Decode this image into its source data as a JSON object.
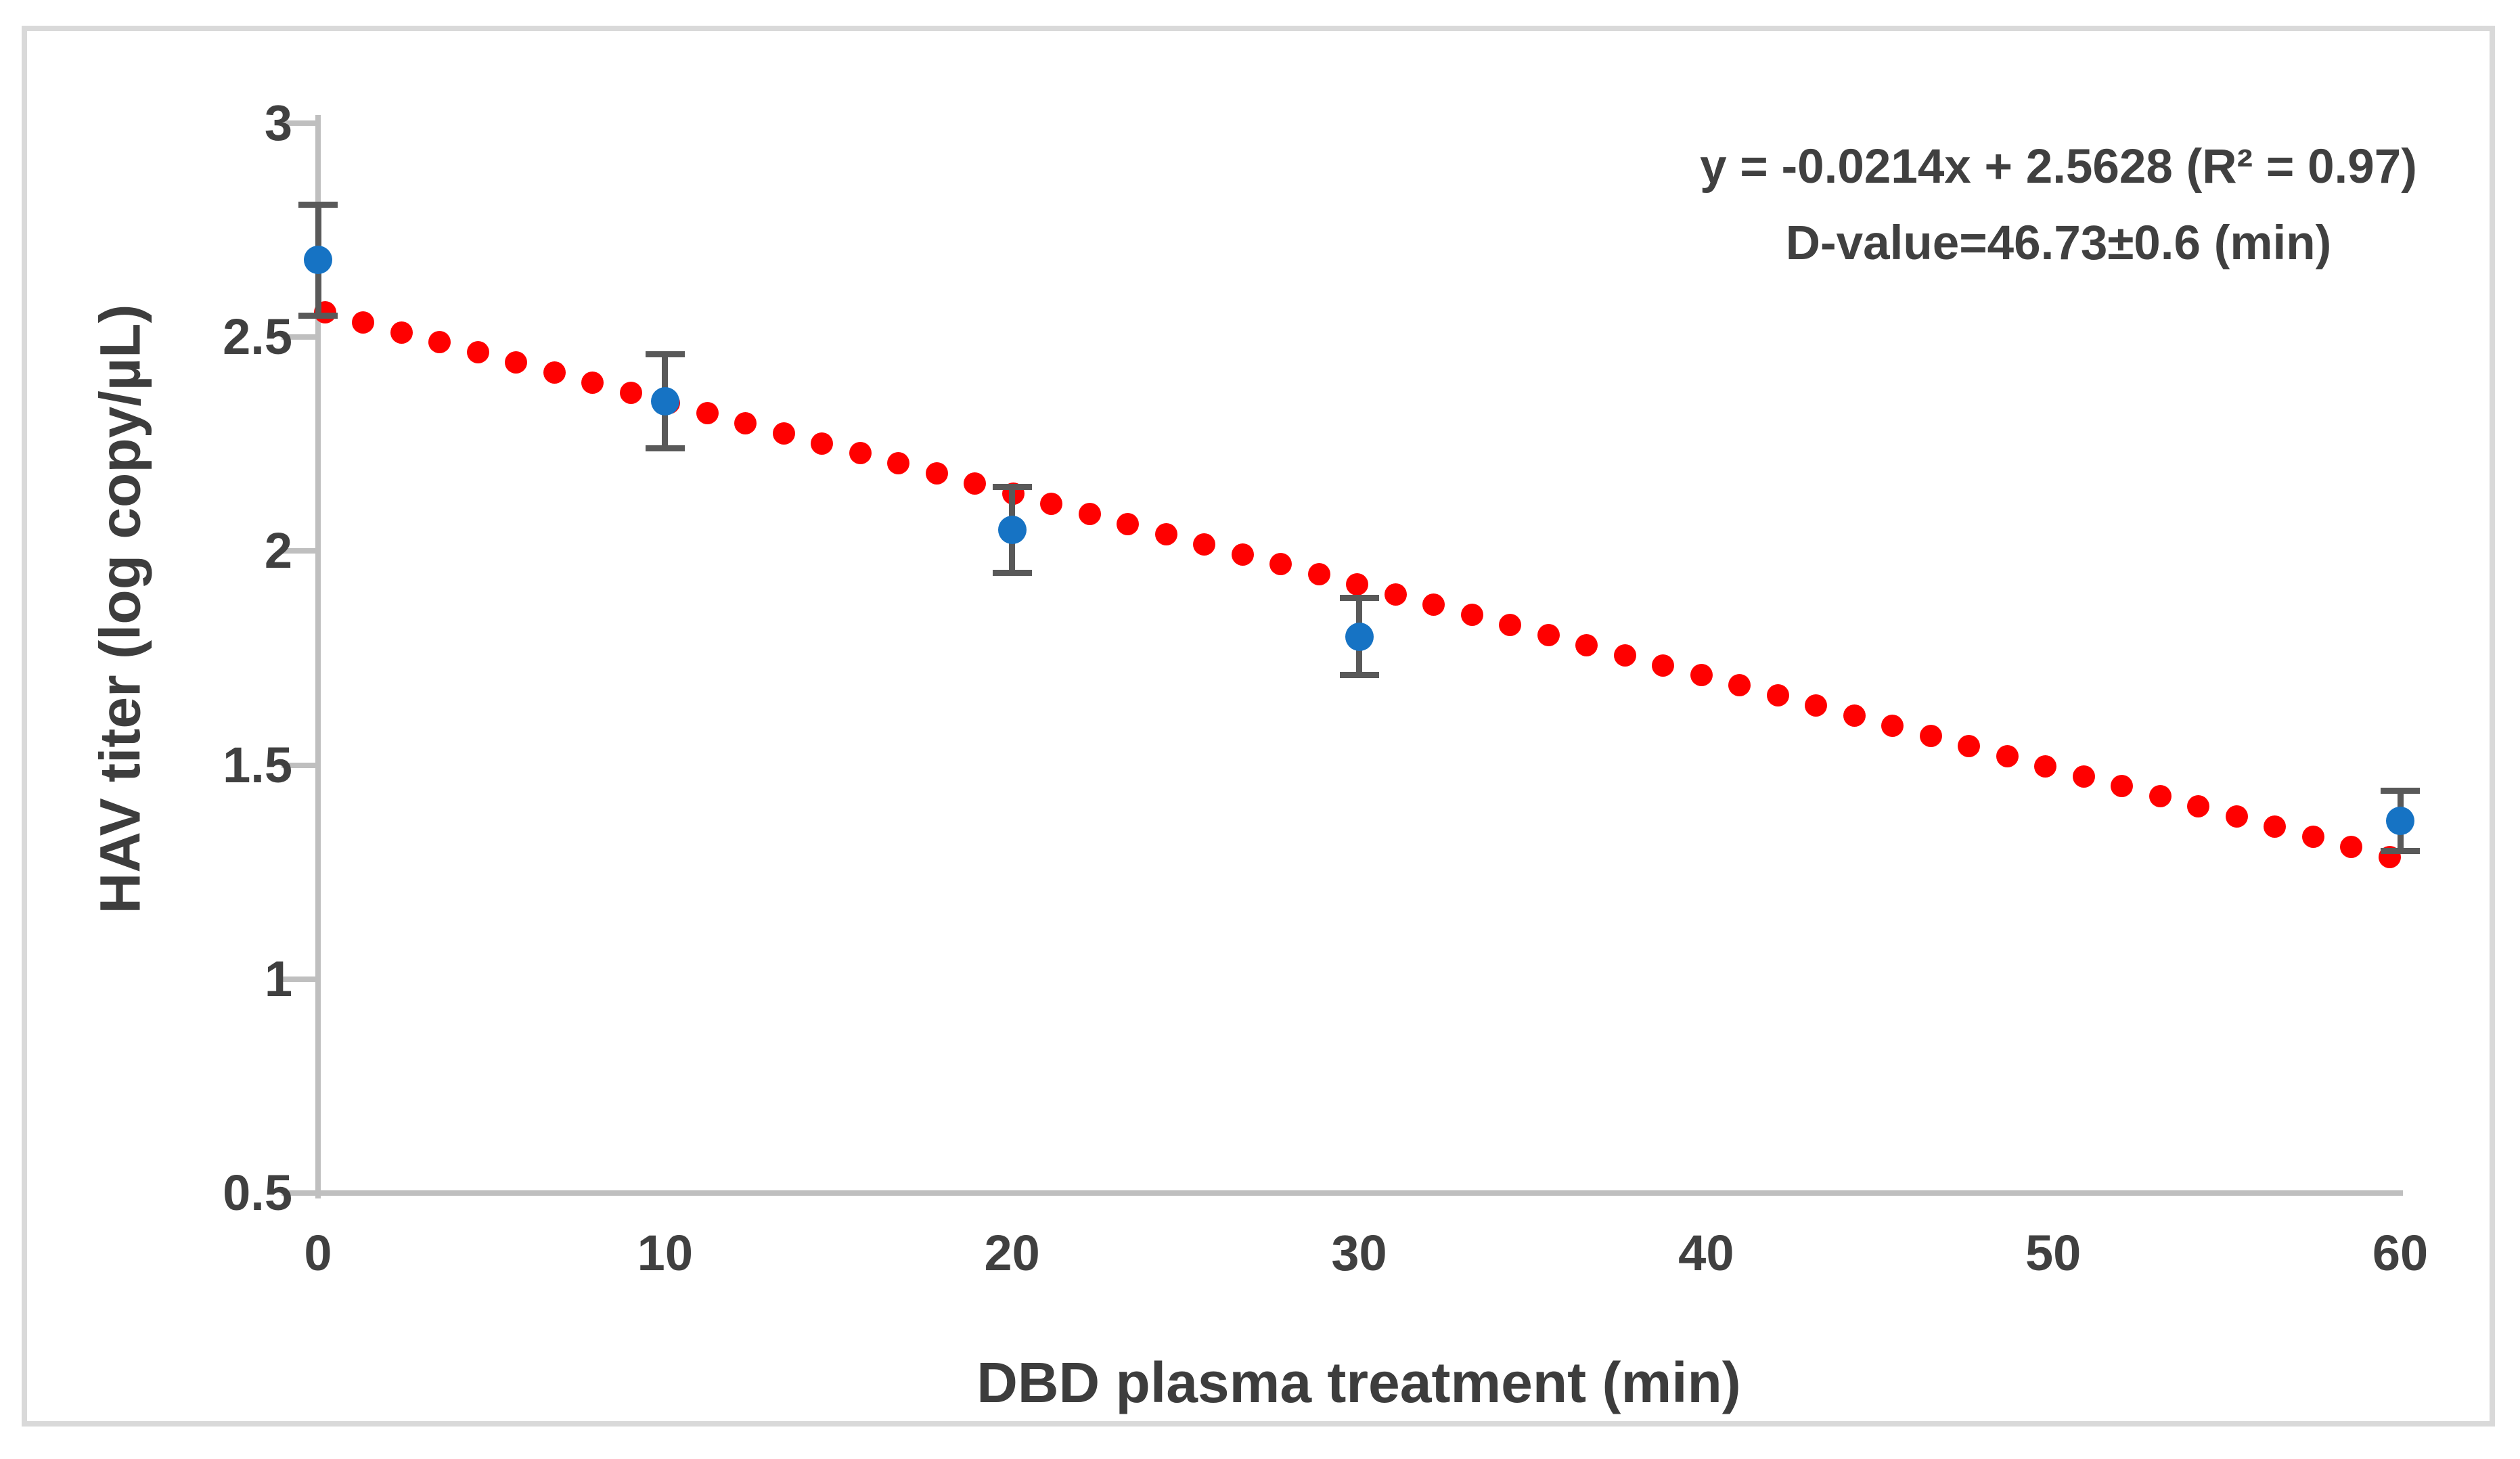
{
  "figure": {
    "background": "#FFFFFF",
    "border_color": "#D9D9D9"
  },
  "colors": {
    "axis": "#BFBFBF",
    "text": "#404040",
    "error_bar": "#595959",
    "point": "#1673C4",
    "trend": "#FF0000"
  },
  "chart_data": {
    "type": "scatter",
    "title": "",
    "xlabel": "DBD plasma treatment (min)",
    "ylabel": "HAV titer (log copy/µL)",
    "xlim": [
      0,
      60
    ],
    "ylim": [
      0.5,
      3
    ],
    "grid": false,
    "legend_position": "none",
    "x_tick_values": [
      0,
      10,
      20,
      30,
      40,
      50,
      60
    ],
    "x_tick_labels": [
      "0",
      "10",
      "20",
      "30",
      "40",
      "50",
      "60"
    ],
    "y_tick_values": [
      3,
      2.5,
      2,
      1.5,
      1,
      0.5
    ],
    "y_tick_labels": [
      "3",
      "2.5",
      "2",
      "1.5",
      "1",
      "0.5"
    ],
    "series": [
      {
        "name": "HAV titer",
        "marker": "circle",
        "color": "#1673C4",
        "x": [
          0,
          10,
          20,
          30,
          60
        ],
        "y": [
          2.68,
          2.35,
          2.05,
          1.8,
          1.37
        ],
        "yerr": [
          0.13,
          0.11,
          0.1,
          0.09,
          0.07
        ]
      }
    ],
    "trendline": {
      "style": "dotted",
      "color": "#FF0000",
      "slope": -0.0214,
      "intercept": 2.5628,
      "x_range": [
        0.2,
        59.7
      ]
    },
    "annotation": {
      "line1": "y = -0.0214x + 2.5628 (R² = 0.97)",
      "line2": "D-value=46.73±0.6 (min)"
    }
  }
}
